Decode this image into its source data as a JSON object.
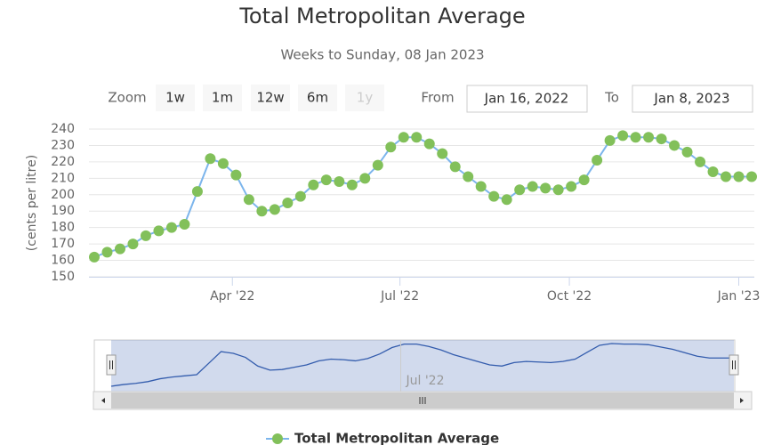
{
  "chart_data": {
    "type": "line",
    "title": "Total Metropolitan Average",
    "subtitle": "Weeks to Sunday, 08 Jan 2023",
    "y_axis_label": "(cents per litre)",
    "x": [
      "2022-01-16",
      "2022-01-23",
      "2022-01-30",
      "2022-02-06",
      "2022-02-13",
      "2022-02-20",
      "2022-02-27",
      "2022-03-06",
      "2022-03-13",
      "2022-03-20",
      "2022-03-27",
      "2022-04-03",
      "2022-04-10",
      "2022-04-17",
      "2022-04-24",
      "2022-05-01",
      "2022-05-08",
      "2022-05-15",
      "2022-05-22",
      "2022-05-29",
      "2022-06-05",
      "2022-06-12",
      "2022-06-19",
      "2022-06-26",
      "2022-07-03",
      "2022-07-10",
      "2022-07-17",
      "2022-07-24",
      "2022-07-31",
      "2022-08-07",
      "2022-08-14",
      "2022-08-21",
      "2022-08-28",
      "2022-09-04",
      "2022-09-11",
      "2022-09-18",
      "2022-09-25",
      "2022-10-02",
      "2022-10-09",
      "2022-10-16",
      "2022-10-23",
      "2022-10-30",
      "2022-11-06",
      "2022-11-13",
      "2022-11-20",
      "2022-11-27",
      "2022-12-04",
      "2022-12-11",
      "2022-12-18",
      "2022-12-25",
      "2023-01-01",
      "2023-01-08"
    ],
    "series": [
      {
        "name": "Total Metropolitan Average",
        "color": "#7cb5ec",
        "marker_color": "#82c05a",
        "values": [
          162,
          165,
          167,
          170,
          175,
          178,
          180,
          182,
          202,
          222,
          219,
          212,
          197,
          190,
          191,
          195,
          199,
          206,
          209,
          208,
          206,
          210,
          218,
          229,
          235,
          235,
          231,
          225,
          217,
          211,
          205,
          199,
          197,
          203,
          205,
          204,
          203,
          205,
          209,
          221,
          233,
          236,
          235,
          235,
          234,
          230,
          226,
          220,
          214,
          211,
          211,
          211
        ]
      }
    ],
    "xlim": [
      "2022-01-16",
      "2023-01-08"
    ],
    "xticks": [
      {
        "value": "2022-04-01",
        "label": "Apr '22"
      },
      {
        "value": "2022-07-01",
        "label": "Jul '22"
      },
      {
        "value": "2022-10-01",
        "label": "Oct '22"
      },
      {
        "value": "2023-01-01",
        "label": "Jan '23"
      }
    ],
    "ylim": [
      150,
      240
    ],
    "yticks": [
      150,
      160,
      170,
      180,
      190,
      200,
      210,
      220,
      230,
      240
    ],
    "grid": true,
    "navigator": {
      "color": "#335cad",
      "xticks": [
        {
          "value": "2022-07-01",
          "label": "Jul '22"
        }
      ]
    }
  },
  "range_selector": {
    "zoom_label": "Zoom",
    "buttons": [
      "1w",
      "1m",
      "12w",
      "6m",
      "1y"
    ],
    "from_label": "From",
    "from": "Jan 16, 2022",
    "to_label": "To",
    "to": "Jan 8, 2023"
  }
}
